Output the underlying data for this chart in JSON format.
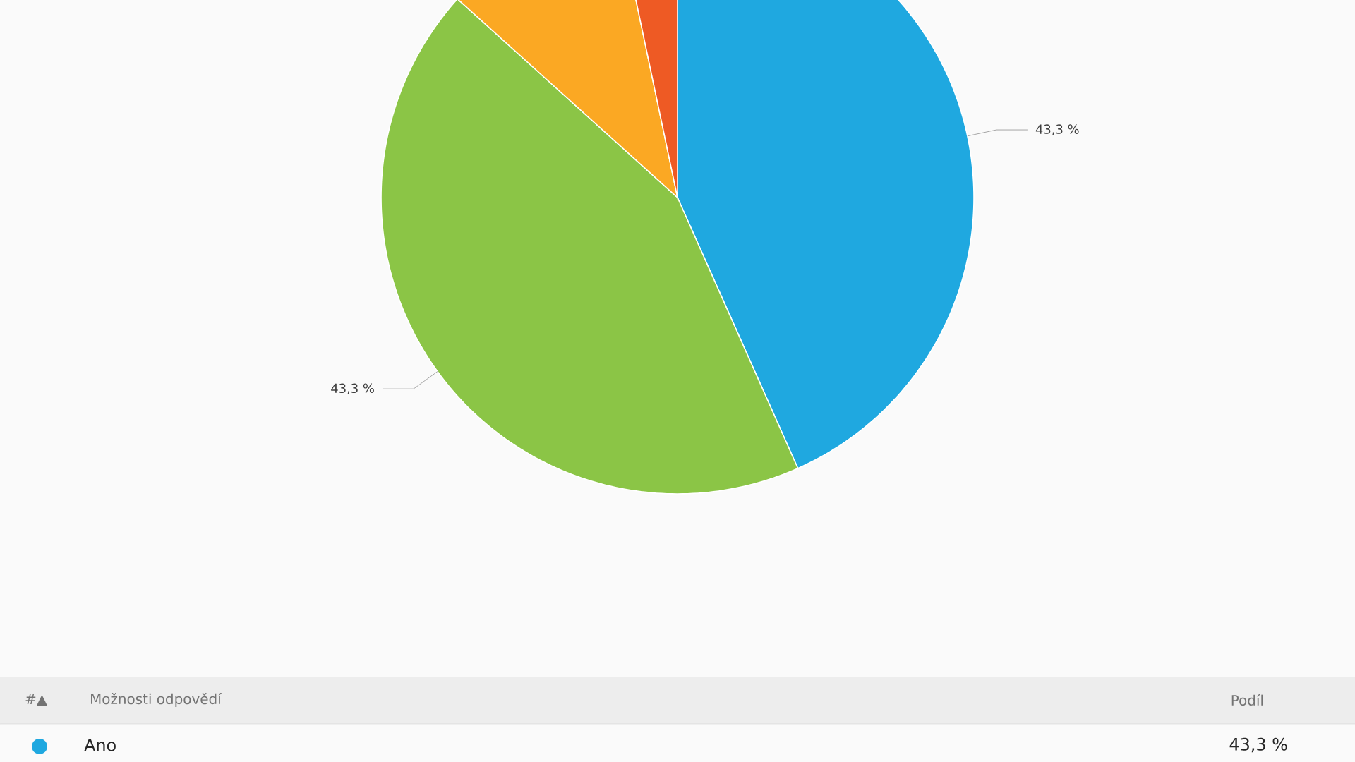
{
  "chart_data": {
    "type": "pie",
    "categories": [
      "Ano",
      null,
      null,
      null
    ],
    "values": [
      43.3,
      43.3,
      10.0,
      3.3
    ],
    "colors": [
      "#1fa8e0",
      "#8bc546",
      "#fba823",
      "#ee5a24"
    ],
    "value_labels": [
      "43,3 %",
      "43,3 %",
      null,
      null
    ],
    "annotations": [
      "#▲",
      "Možnosti odpovědí",
      "Podíl"
    ]
  }
}
